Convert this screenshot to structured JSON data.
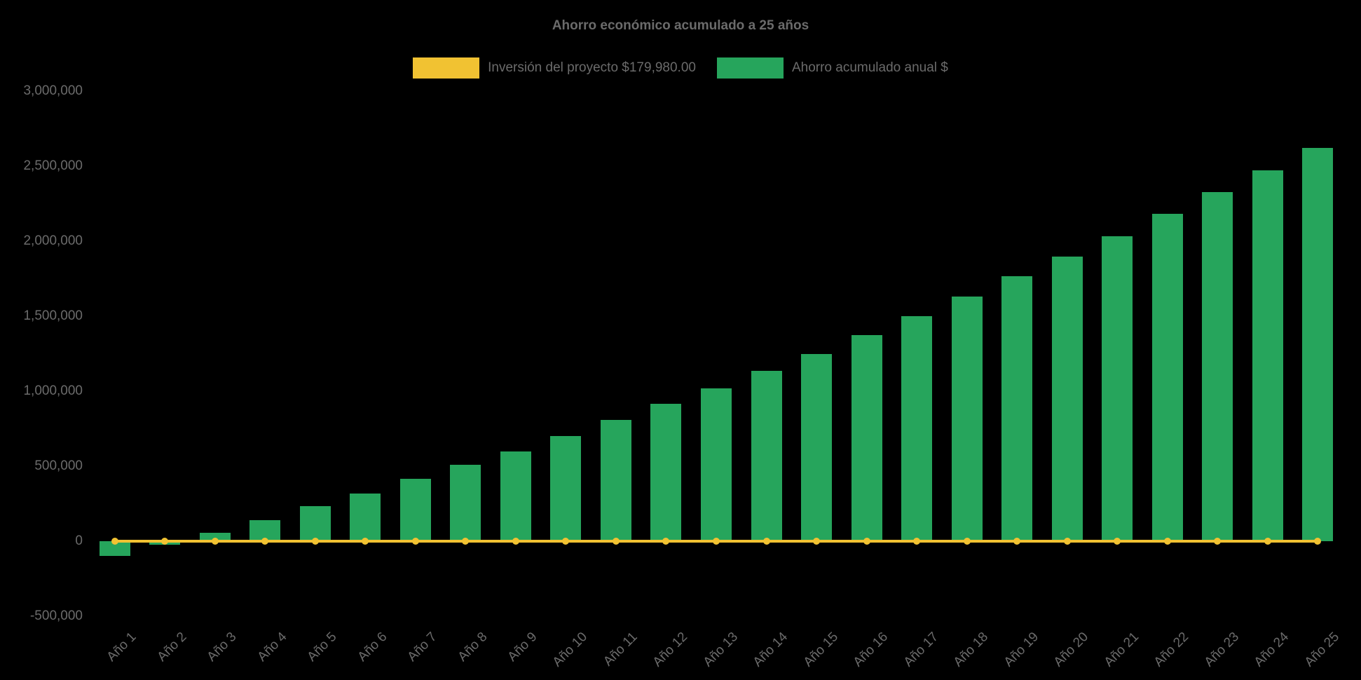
{
  "title": "Ahorro económico acumulado a 25 años",
  "chart_data": {
    "type": "bar",
    "title": "Ahorro económico acumulado a 25 años",
    "categories": [
      "Año 1",
      "Año 2",
      "Año 3",
      "Año 4",
      "Año 5",
      "Año 6",
      "Año 7",
      "Año 8",
      "Año 9",
      "Año 10",
      "Año 11",
      "Año 12",
      "Año 13",
      "Año 14",
      "Año 15",
      "Año 16",
      "Año 17",
      "Año 18",
      "Año 19",
      "Año 20",
      "Año 21",
      "Año 22",
      "Año 23",
      "Año 24",
      "Año 25"
    ],
    "series": [
      {
        "name": "Inversión del proyecto $179,980.00",
        "type": "line",
        "color": "#F1C232",
        "values": [
          0,
          0,
          0,
          0,
          0,
          0,
          0,
          0,
          0,
          0,
          0,
          0,
          0,
          0,
          0,
          0,
          0,
          0,
          0,
          0,
          0,
          0,
          0,
          0,
          0
        ]
      },
      {
        "name": "Ahorro acumulado anual $",
        "type": "bar",
        "color": "#26A55C",
        "values": [
          -100000,
          -25000,
          55000,
          140000,
          235000,
          320000,
          415000,
          510000,
          600000,
          700000,
          810000,
          915000,
          1020000,
          1135000,
          1250000,
          1375000,
          1500000,
          1630000,
          1765000,
          1895000,
          2035000,
          2180000,
          2325000,
          2470000,
          2620000
        ]
      }
    ],
    "ylim": [
      -500000,
      3000000
    ],
    "y_ticks": [
      3000000,
      2500000,
      2000000,
      1500000,
      1000000,
      500000,
      0,
      -500000
    ],
    "y_tick_labels": [
      "3,000,000",
      "2,500,000",
      "2,000,000",
      "1,500,000",
      "1,000,000",
      "500,000",
      "0",
      "-500,000"
    ],
    "grid": false,
    "legend_position": "top",
    "background_color": "#000000",
    "text_color": "#6B6B6B"
  }
}
